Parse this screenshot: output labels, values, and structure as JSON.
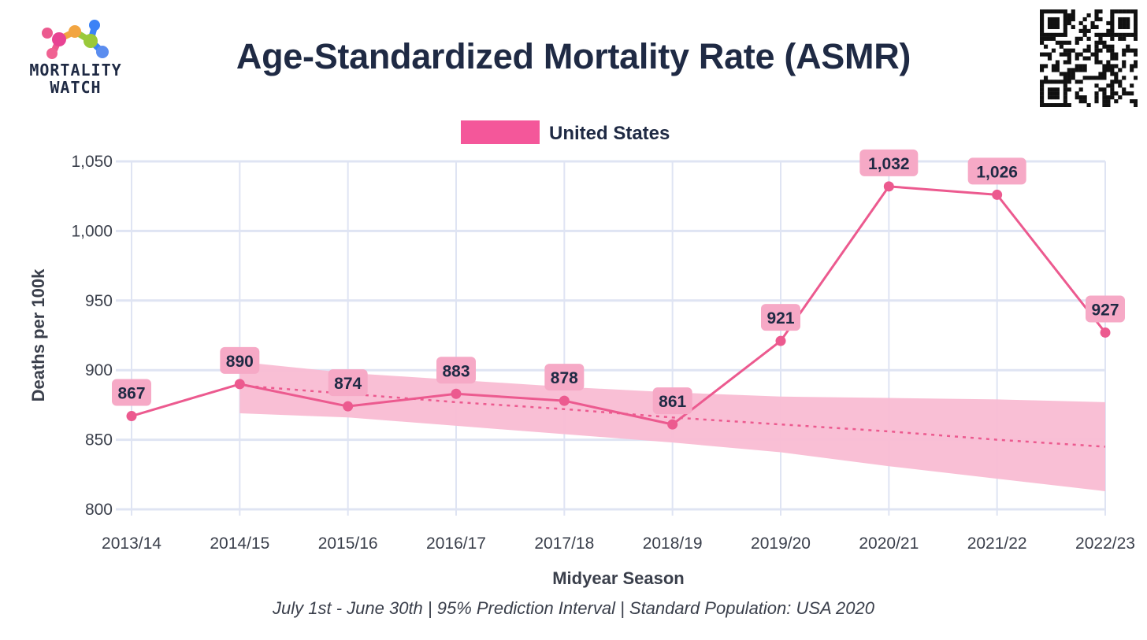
{
  "logo": {
    "line1": "MORTALITY",
    "line2": "WATCH"
  },
  "chart_data": {
    "type": "line",
    "title": "Age-Standardized Mortality Rate (ASMR)",
    "xlabel": "Midyear Season",
    "ylabel": "Deaths per 100k",
    "footnote": "July 1st - June 30th | 95% Prediction Interval | Standard Population: USA 2020",
    "categories": [
      "2013/14",
      "2014/15",
      "2015/16",
      "2016/17",
      "2017/18",
      "2018/19",
      "2019/20",
      "2020/21",
      "2021/22",
      "2022/23"
    ],
    "ylim": [
      800,
      1050
    ],
    "yticks": [
      800,
      850,
      900,
      950,
      1000,
      1050
    ],
    "ytick_labels": [
      "800",
      "850",
      "900",
      "950",
      "1,000",
      "1,050"
    ],
    "legend": {
      "label": "United States",
      "position": "top-center"
    },
    "series": [
      {
        "name": "United States",
        "values": [
          867,
          890,
          874,
          883,
          878,
          861,
          921,
          1032,
          1026,
          927
        ],
        "labels": [
          "867",
          "890",
          "874",
          "883",
          "878",
          "861",
          "921",
          "1,032",
          "1,026",
          "927"
        ],
        "color": "#ec5a8f"
      }
    ],
    "baseline": {
      "name": "Trend",
      "x_start_index": 1,
      "values": [
        889,
        883,
        877,
        872,
        866,
        861,
        856,
        850,
        845
      ]
    },
    "prediction_interval": {
      "level": "95%",
      "x_start_index": 1,
      "upper": [
        906,
        898,
        893,
        888,
        884,
        881,
        880,
        879,
        877
      ],
      "lower": [
        869,
        866,
        860,
        854,
        848,
        841,
        831,
        822,
        813
      ]
    },
    "colors": {
      "line": "#ec5a8f",
      "band": "#f9bcd3",
      "label_bg": "#f6a9c6",
      "grid": "#dfe4f3",
      "text": "#1f2a44"
    }
  }
}
